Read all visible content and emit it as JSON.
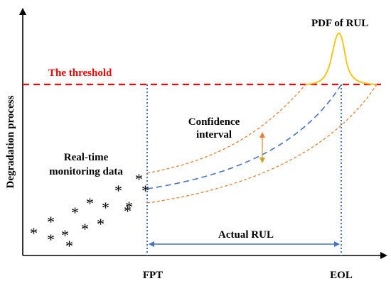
{
  "labels": {
    "y_axis": "Degradation process",
    "threshold": "The threshold",
    "pdf": "PDF of RUL",
    "confidence_line1": "Confidence",
    "confidence_line2": "interval",
    "monitoring_line1": "Real-time",
    "monitoring_line2": "monitoring data",
    "actual_rul": "Actual RUL",
    "fpt": "FPT",
    "eol": "EOL",
    "data_marker": "*"
  },
  "colors": {
    "threshold": "#ff0000",
    "vertical_markers": "#4472c4",
    "bound_curves": "#ed7d31",
    "mean_curve": "#4472c4",
    "pdf_curve": "#ffc000",
    "rul_arrow": "#4472c4",
    "ci_arrow_up": "#ed7d31",
    "ci_arrow_down": "#c9a227",
    "axes": "#000000"
  },
  "data_points_count": 15
}
